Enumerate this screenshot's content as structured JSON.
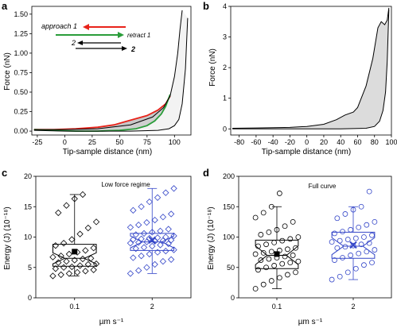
{
  "colors": {
    "approach": "#e8231a",
    "retract": "#2a9d3a",
    "black": "#000000",
    "fill": "#d9d9d9",
    "blue": "#3446c8",
    "box_fill_gray": "#ffffff"
  },
  "chart_data": [
    {
      "id": "a",
      "type": "line",
      "panel_letter": "a",
      "xlabel": "Tip-sample distance (nm)",
      "ylabel": "Force (nN)",
      "xlim": [
        -30,
        115
      ],
      "ylim": [
        -0.05,
        1.6
      ],
      "xticks": [
        -25,
        0,
        25,
        50,
        75,
        100
      ],
      "yticks": [
        0.0,
        0.25,
        0.5,
        0.75,
        1.0,
        1.25,
        1.5
      ],
      "ytick_labels": [
        "0.00",
        "0.25",
        "0.50",
        "0.75",
        "1.00",
        "1.25",
        "1.50"
      ],
      "legend": [
        {
          "label": "approach 1",
          "color": "#e8231a"
        },
        {
          "label": "retract 1",
          "color": "#2a9d3a"
        },
        {
          "label": "2",
          "color": "#000000"
        },
        {
          "label": "2",
          "color": "#000000"
        }
      ],
      "series": [
        {
          "name": "approach 1",
          "color": "#e8231a",
          "x": [
            -28,
            -10,
            10,
            30,
            45,
            55,
            65,
            75,
            85,
            92,
            96
          ],
          "y": [
            0.02,
            0.02,
            0.03,
            0.05,
            0.08,
            0.12,
            0.16,
            0.2,
            0.27,
            0.35,
            0.45
          ]
        },
        {
          "name": "retract 1",
          "color": "#2a9d3a",
          "x": [
            -28,
            -10,
            10,
            30,
            50,
            65,
            75,
            82,
            88,
            92,
            96
          ],
          "y": [
            0.02,
            0.01,
            0.0,
            0.0,
            0.01,
            0.03,
            0.07,
            0.13,
            0.22,
            0.32,
            0.47
          ]
        },
        {
          "name": "approach 2",
          "color": "#000000",
          "x": [
            -28,
            0,
            30,
            60,
            80,
            90,
            96,
            100,
            103,
            105,
            107
          ],
          "y": [
            0.02,
            0.02,
            0.03,
            0.08,
            0.18,
            0.3,
            0.45,
            0.7,
            1.0,
            1.3,
            1.55
          ]
        },
        {
          "name": "retract 2",
          "color": "#000000",
          "x": [
            -28,
            0,
            30,
            60,
            85,
            95,
            100,
            104,
            107,
            110,
            112
          ],
          "y": [
            0.01,
            0.0,
            0.0,
            0.0,
            0.01,
            0.03,
            0.07,
            0.15,
            0.35,
            0.8,
            1.45
          ]
        }
      ]
    },
    {
      "id": "b",
      "type": "line",
      "panel_letter": "b",
      "xlabel": "Tip-sample distance (nm)",
      "ylabel": "Force (nN)",
      "xlim": [
        -90,
        100
      ],
      "ylim": [
        -0.2,
        4.0
      ],
      "xticks": [
        -80,
        -60,
        -40,
        -20,
        0,
        20,
        40,
        60,
        80,
        100
      ],
      "yticks": [
        0,
        1,
        2,
        3,
        4
      ],
      "series": [
        {
          "name": "approach",
          "color": "#000000",
          "x": [
            -88,
            -60,
            -20,
            0,
            20,
            35,
            45,
            55,
            60,
            70,
            78,
            84,
            88,
            92,
            95,
            97
          ],
          "y": [
            0.02,
            0.03,
            0.05,
            0.08,
            0.15,
            0.3,
            0.45,
            0.55,
            0.7,
            1.4,
            2.3,
            3.3,
            3.5,
            3.4,
            3.55,
            3.95
          ]
        },
        {
          "name": "retract",
          "color": "#000000",
          "x": [
            -88,
            -40,
            0,
            40,
            70,
            80,
            86,
            90,
            93,
            95,
            97
          ],
          "y": [
            0.0,
            0.0,
            0.0,
            0.0,
            0.02,
            0.08,
            0.25,
            0.6,
            1.2,
            2.2,
            3.9
          ]
        }
      ]
    },
    {
      "id": "c",
      "type": "box",
      "panel_letter": "c",
      "title": "Low force regime",
      "xlabel": "µm s⁻¹",
      "ylabel": "Energy (J) (10⁻¹⁸)",
      "ylim": [
        0,
        20
      ],
      "yticks": [
        0,
        5,
        10,
        15,
        20
      ],
      "categories": [
        "0.1",
        "2"
      ],
      "boxes": [
        {
          "category": "0.1",
          "color": "#000000",
          "marker": "diamond-open",
          "q1": 5.2,
          "median": 6.5,
          "q3": 8.8,
          "whisker_low": 3.6,
          "whisker_high": 17.0,
          "mean": 7.6,
          "points": [
            3.6,
            3.8,
            4.0,
            4.2,
            4.4,
            4.6,
            4.8,
            5.0,
            5.1,
            5.3,
            5.5,
            5.6,
            5.8,
            6.0,
            6.2,
            6.4,
            6.5,
            6.7,
            6.9,
            7.2,
            7.5,
            7.8,
            8.2,
            8.6,
            9.0,
            9.6,
            10.5,
            11.5,
            12.5,
            14.0,
            15.2,
            16.3,
            17.0
          ]
        },
        {
          "category": "2",
          "color": "#3446c8",
          "marker": "diamond-open",
          "q1": 7.8,
          "median": 9.2,
          "q3": 10.6,
          "whisker_low": 4.0,
          "whisker_high": 18.0,
          "mean": 9.5,
          "points": [
            4.0,
            4.5,
            5.0,
            5.5,
            6.0,
            6.3,
            6.6,
            6.9,
            7.2,
            7.5,
            7.7,
            7.9,
            8.1,
            8.3,
            8.5,
            8.7,
            8.9,
            9.0,
            9.1,
            9.2,
            9.3,
            9.4,
            9.5,
            9.6,
            9.7,
            9.8,
            9.9,
            10.0,
            10.2,
            10.4,
            10.6,
            10.8,
            11.0,
            11.3,
            11.6,
            12.0,
            12.4,
            12.8,
            13.3,
            13.8,
            14.4,
            15.0,
            15.8,
            16.5,
            17.3,
            18.0
          ]
        }
      ]
    },
    {
      "id": "d",
      "type": "box",
      "panel_letter": "d",
      "title": "Full curve",
      "xlabel": "µm s⁻¹",
      "ylabel": "Energy (J) (10⁻¹⁸)",
      "ylim": [
        0,
        200
      ],
      "yticks": [
        0,
        50,
        100,
        150,
        200
      ],
      "categories": [
        "0.1",
        "2"
      ],
      "boxes": [
        {
          "category": "0.1",
          "color": "#000000",
          "marker": "circle-open",
          "q1": 48,
          "median": 70,
          "q3": 95,
          "whisker_low": 15,
          "whisker_high": 150,
          "mean": 72,
          "points": [
            15,
            22,
            28,
            33,
            38,
            42,
            46,
            50,
            53,
            56,
            58,
            60,
            62,
            64,
            66,
            68,
            70,
            72,
            74,
            76,
            78,
            80,
            82,
            85,
            88,
            91,
            94,
            97,
            100,
            104,
            108,
            112,
            118,
            125,
            132,
            140,
            150,
            172
          ]
        },
        {
          "category": "2",
          "color": "#3446c8",
          "marker": "circle-open",
          "q1": 65,
          "median": 85,
          "q3": 108,
          "whisker_low": 30,
          "whisker_high": 150,
          "mean": 87,
          "points": [
            30,
            35,
            42,
            48,
            54,
            58,
            62,
            66,
            70,
            73,
            76,
            79,
            82,
            84,
            86,
            88,
            90,
            92,
            94,
            96,
            98,
            100,
            103,
            106,
            109,
            112,
            116,
            120,
            125,
            131,
            138,
            145,
            150,
            175
          ]
        }
      ]
    }
  ]
}
